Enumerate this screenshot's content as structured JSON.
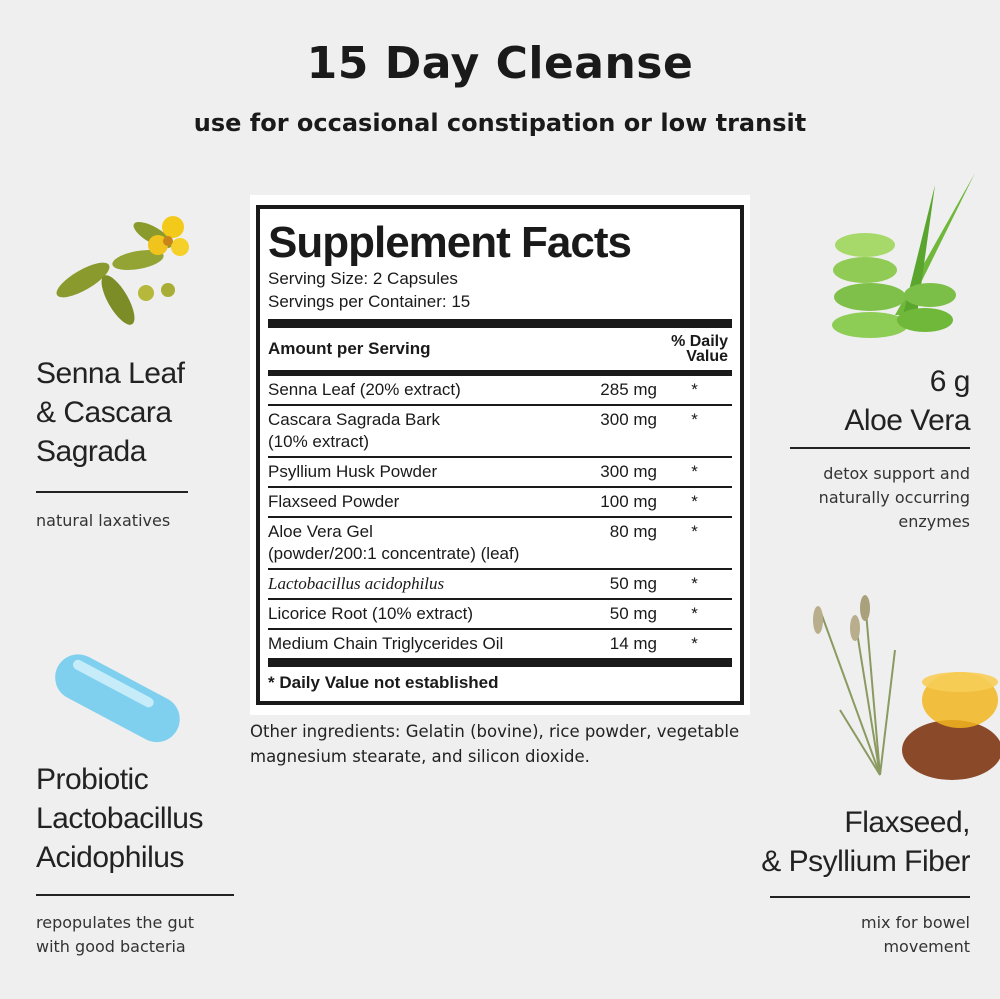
{
  "header": {
    "title": "15 Day Cleanse",
    "subtitle": "use for occasional constipation or low transit"
  },
  "label": {
    "title": "Supplement Facts",
    "serving_size": "Serving Size: 2 Capsules",
    "servings_per_container": "Servings per Container: 15",
    "col_amount": "Amount per Serving",
    "col_dv_1": "% Daily",
    "col_dv_2": "Value",
    "rows": [
      {
        "name": "Senna Leaf (20% extract)",
        "amount": "285 mg",
        "dv": "*"
      },
      {
        "name": "Cascara Sagrada Bark",
        "name2": "(10% extract)",
        "amount": "300 mg",
        "dv": "*"
      },
      {
        "name": "Psyllium Husk Powder",
        "amount": "300 mg",
        "dv": "*"
      },
      {
        "name": "Flaxseed Powder",
        "amount": "100 mg",
        "dv": "*"
      },
      {
        "name": "Aloe Vera Gel",
        "name2": "(powder/200:1 concentrate) (leaf)",
        "amount": "80 mg",
        "dv": "*"
      },
      {
        "name": "Lactobacillus acidophilus",
        "amount": "50 mg",
        "dv": "*"
      },
      {
        "name": "Licorice Root (10% extract)",
        "amount": "50 mg",
        "dv": "*"
      },
      {
        "name": "Medium Chain Triglycerides Oil",
        "amount": "14 mg",
        "dv": "*"
      }
    ],
    "footnote": "* Daily Value not established"
  },
  "other_ingredients": "Other ingredients: Gelatin (bovine), rice powder, vegetable magnesium stearate, and silicon dioxide.",
  "features": {
    "senna": {
      "l1": "Senna Leaf",
      "l2": "& Cascara",
      "l3": "Sagrada",
      "desc": "natural laxatives"
    },
    "probiotic": {
      "l1": "Probiotic",
      "l2": "Lactobacillus",
      "l3": "Acidophilus",
      "desc1": "repopulates the gut",
      "desc2": "with good bacteria"
    },
    "aloe": {
      "l1": "6 g",
      "l2": "Aloe Vera",
      "desc1": "detox support and",
      "desc2": "naturally occurring",
      "desc3": "enzymes"
    },
    "flax": {
      "l1": "Flaxseed,",
      "l2": "& Psyllium Fiber",
      "desc1": "mix for bowel",
      "desc2": "movement"
    }
  }
}
